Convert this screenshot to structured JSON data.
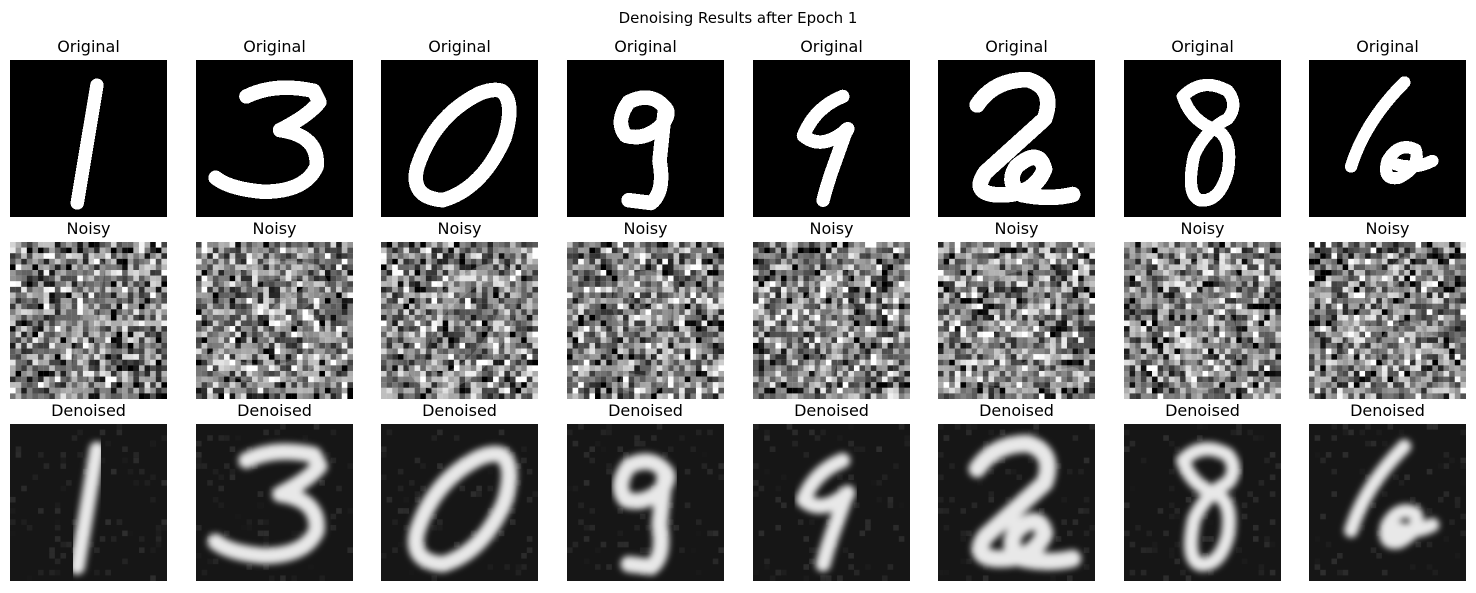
{
  "figure": {
    "title": "Denoising Results after Epoch 1"
  },
  "rows": [
    {
      "key": "original",
      "label": "Original"
    },
    {
      "key": "noisy",
      "label": "Noisy"
    },
    {
      "key": "denoised",
      "label": "Denoised"
    }
  ],
  "samples": [
    {
      "digit": "1"
    },
    {
      "digit": "3"
    },
    {
      "digit": "0"
    },
    {
      "digit": "9"
    },
    {
      "digit": "9"
    },
    {
      "digit": "2"
    },
    {
      "digit": "8"
    },
    {
      "digit": "6"
    }
  ],
  "colors": {
    "original_background": "#000000",
    "original_stroke": "#ffffff",
    "denoised_background": "#161616",
    "denoised_stroke": "#e8e8e8",
    "noisy_base_gray": "#808080"
  },
  "colormap": "gray"
}
